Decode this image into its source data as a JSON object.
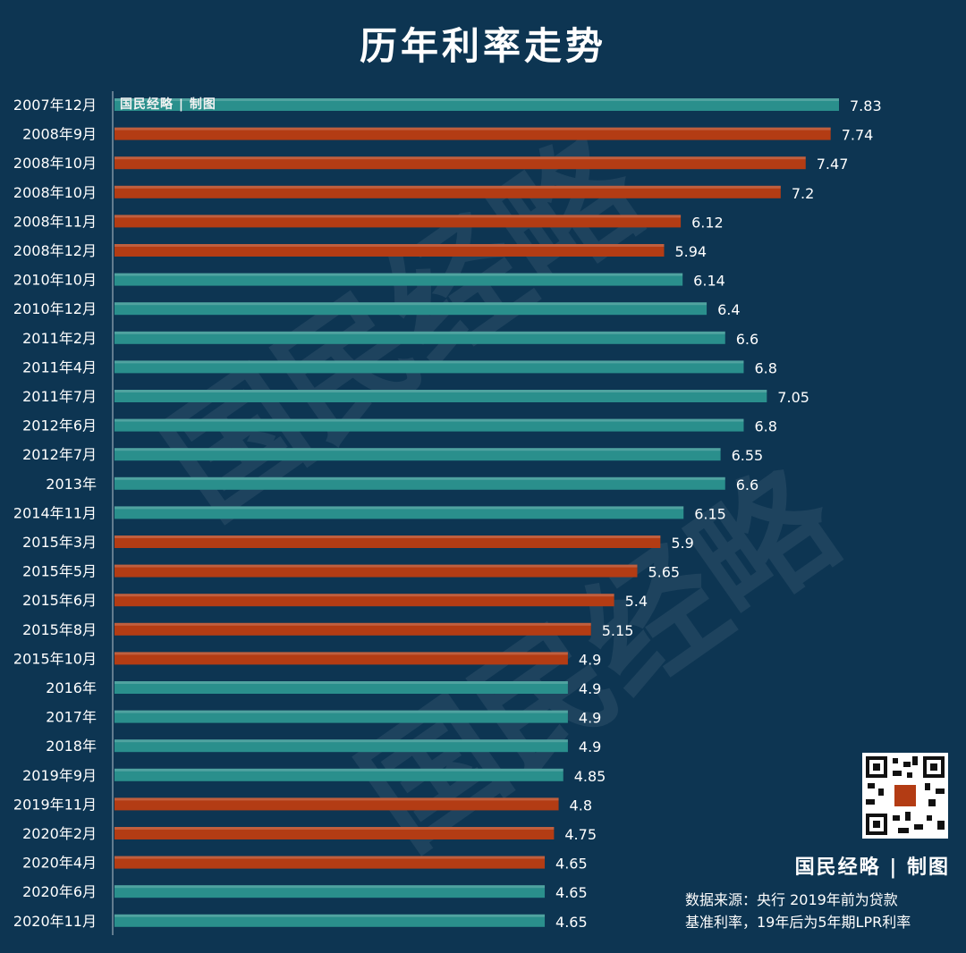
{
  "header": {
    "title": "历年利率走势"
  },
  "brand": {
    "small": "国民经略 | 制图",
    "big": "国民经略 | 制图",
    "watermark": "国民经略"
  },
  "footer": {
    "source_line1": "数据来源：央行   2019年前为贷款",
    "source_line2": "基准利率，19年后为5年期LPR利率"
  },
  "colors": {
    "background": "#0d3552",
    "teal": "#2a8f8c",
    "orange": "#b33c14"
  },
  "icons": {
    "qr": "qr-code-icon"
  },
  "chart_data": {
    "type": "bar",
    "orientation": "horizontal",
    "categories": [
      "2007年12月",
      "2008年9月",
      "2008年10月",
      "2008年10月",
      "2008年11月",
      "2008年12月",
      "2010年10月",
      "2010年12月",
      "2011年2月",
      "2011年4月",
      "2011年7月",
      "2012年6月",
      "2012年7月",
      "2013年",
      "2014年11月",
      "2015年3月",
      "2015年5月",
      "2015年6月",
      "2015年8月",
      "2015年10月",
      "2016年",
      "2017年",
      "2018年",
      "2019年9月",
      "2019年11月",
      "2020年2月",
      "2020年4月",
      "2020年6月",
      "2020年11月"
    ],
    "values": [
      7.83,
      7.74,
      7.47,
      7.2,
      6.12,
      5.94,
      6.14,
      6.4,
      6.6,
      6.8,
      7.05,
      6.8,
      6.55,
      6.6,
      6.15,
      5.9,
      5.65,
      5.4,
      5.15,
      4.9,
      4.9,
      4.9,
      4.9,
      4.85,
      4.8,
      4.75,
      4.65,
      4.65,
      4.65
    ],
    "labels": [
      "7.83",
      "7.74",
      "7.47",
      "7.2",
      "6.12",
      "5.94",
      "6.14",
      "6.4",
      "6.6",
      "6.8",
      "7.05",
      "6.8",
      "6.55",
      "6.6",
      "6.15",
      "5.9",
      "5.65",
      "5.4",
      "5.15",
      "4.9",
      "4.9",
      "4.9",
      "4.9",
      "4.85",
      "4.8",
      "4.75",
      "4.65",
      "4.65",
      "4.65"
    ],
    "bar_colors": [
      "teal",
      "orange",
      "orange",
      "orange",
      "orange",
      "orange",
      "teal",
      "teal",
      "teal",
      "teal",
      "teal",
      "teal",
      "teal",
      "teal",
      "teal",
      "orange",
      "orange",
      "orange",
      "orange",
      "orange",
      "teal",
      "teal",
      "teal",
      "teal",
      "orange",
      "orange",
      "orange",
      "teal",
      "teal"
    ],
    "xlim": [
      0,
      7.83
    ],
    "title": "历年利率走势",
    "grid": false,
    "legend": "none"
  }
}
